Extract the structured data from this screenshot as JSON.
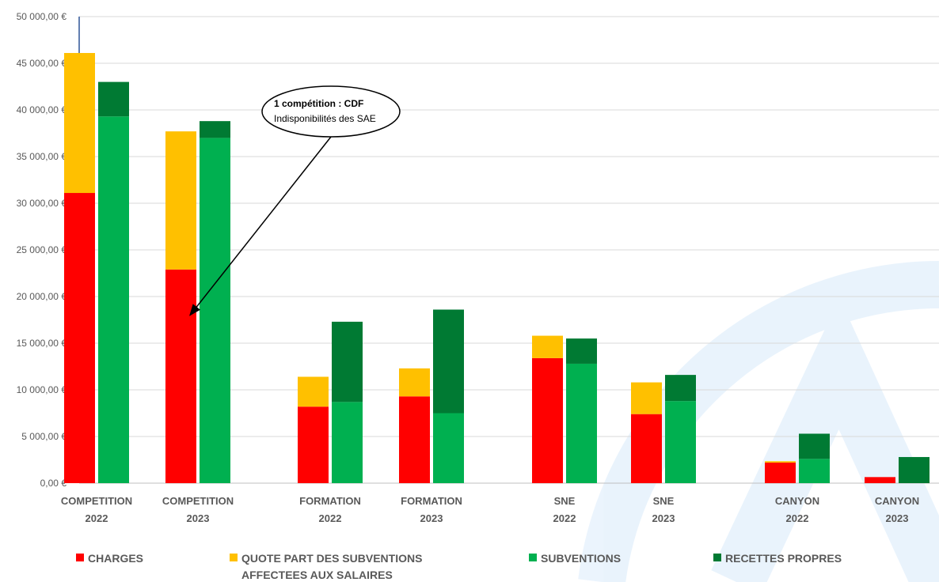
{
  "chart_data": {
    "type": "bar",
    "stacked": true,
    "grouping": "two stacked bars per category",
    "categories": [
      [
        "COMPETITION",
        "2022"
      ],
      [
        "COMPETITION",
        "2023"
      ],
      [
        "FORMATION",
        "2022"
      ],
      [
        "FORMATION",
        "2023"
      ],
      [
        "SNE",
        "2022"
      ],
      [
        "SNE",
        "2023"
      ],
      [
        "CANYON",
        "2022"
      ],
      [
        "CANYON",
        "2023"
      ]
    ],
    "ylim": [
      0,
      50000
    ],
    "yticks": [
      0,
      5000,
      10000,
      15000,
      20000,
      25000,
      30000,
      35000,
      40000,
      45000,
      50000
    ],
    "ytick_labels": [
      "0,00 €",
      "5 000,00 €",
      "10 000,00 €",
      "15 000,00 €",
      "20 000,00 €",
      "25 000,00 €",
      "30 000,00 €",
      "35 000,00 €",
      "40 000,00 €",
      "45 000,00 €",
      "50 000,00 €"
    ],
    "grid": true,
    "legend_position": "bottom",
    "series": [
      {
        "name": "CHARGES",
        "color": "#ff0000",
        "stack": "depenses",
        "values": [
          31100,
          22900,
          8200,
          9300,
          13400,
          7400,
          2200,
          650
        ]
      },
      {
        "name": "QUOTE PART DES SUBVENTIONS AFFECTEES AUX SALAIRES",
        "legend_lines": [
          "QUOTE PART DES SUBVENTIONS",
          "AFFECTEES AUX SALAIRES"
        ],
        "color": "#ffc000",
        "stack": "depenses",
        "values": [
          15000,
          14800,
          3200,
          3000,
          2400,
          3400,
          150,
          0
        ]
      },
      {
        "name": "SUBVENTIONS",
        "color": "#00b050",
        "stack": "recettes",
        "values": [
          39300,
          37000,
          8700,
          7500,
          12800,
          8800,
          2600,
          0
        ]
      },
      {
        "name": "RECETTES PROPRES",
        "color": "#007a33",
        "stack": "recettes",
        "values": [
          3700,
          1800,
          8600,
          11100,
          2700,
          2800,
          2700,
          2800
        ]
      }
    ],
    "annotations": [
      {
        "title": "1 compétition : CDF",
        "text": "Indisponibilités des SAE",
        "target_category": 1,
        "target_value": 18000
      }
    ]
  }
}
